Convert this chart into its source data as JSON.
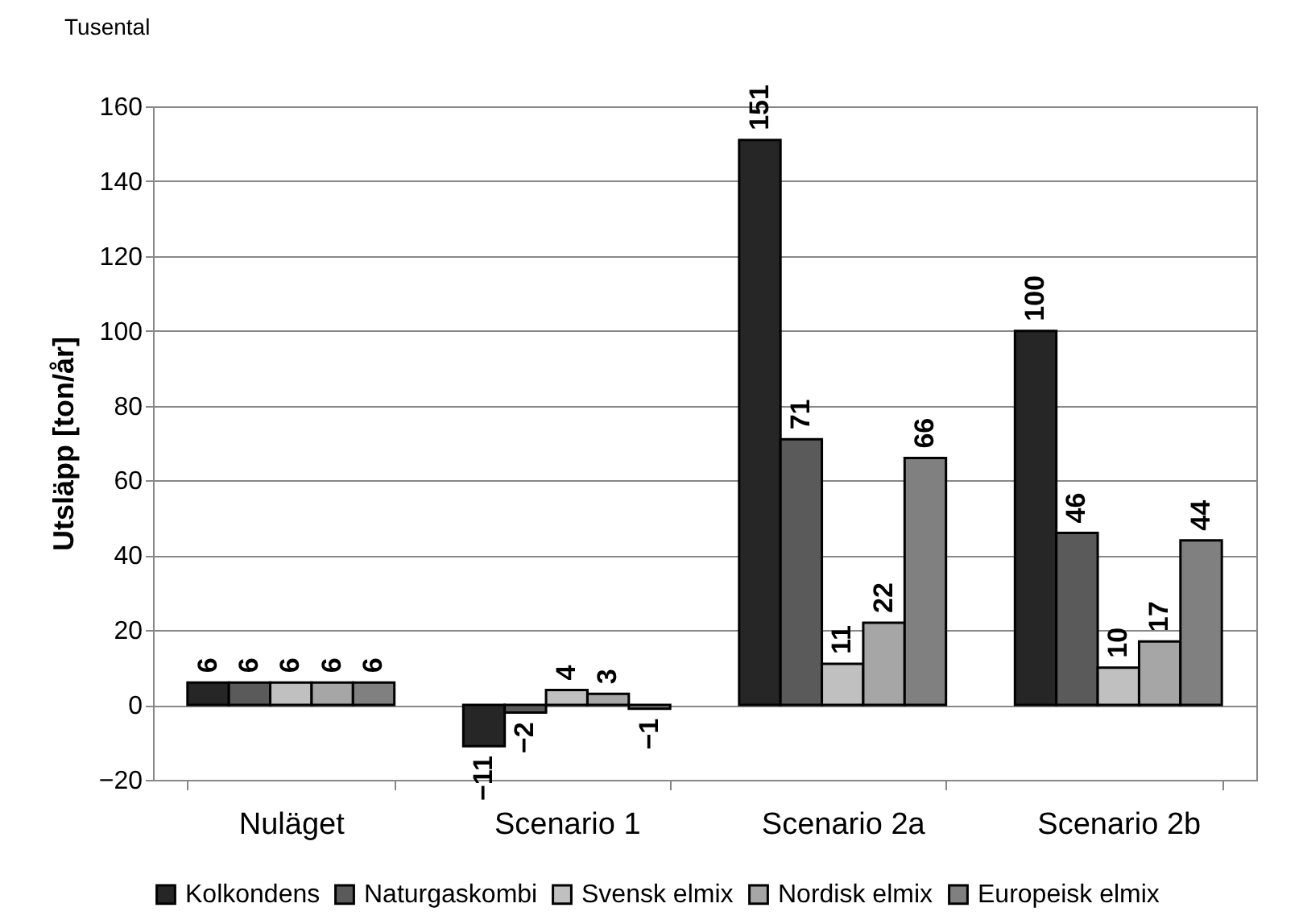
{
  "chart_data": {
    "type": "bar",
    "ylabel": "Utsläpp [ton/år]",
    "annotations": [
      "Tusental"
    ],
    "categories": [
      "Nuläget",
      "Scenario 1",
      "Scenario 2a",
      "Scenario 2b"
    ],
    "series": [
      {
        "name": "Kolkondens",
        "color": "#262626",
        "values": [
          6,
          -11,
          151,
          100
        ]
      },
      {
        "name": "Naturgaskombi",
        "color": "#5a5a5a",
        "values": [
          6,
          -2,
          71,
          46
        ]
      },
      {
        "name": "Svensk elmix",
        "color": "#c0c0c0",
        "values": [
          6,
          4,
          11,
          10
        ]
      },
      {
        "name": "Nordisk elmix",
        "color": "#a6a6a6",
        "values": [
          6,
          3,
          22,
          17
        ]
      },
      {
        "name": "Europeisk elmix",
        "color": "#808080",
        "values": [
          6,
          -1,
          66,
          44
        ]
      }
    ],
    "ylim": [
      -20,
      160
    ],
    "yticks": [
      -20,
      0,
      20,
      40,
      60,
      80,
      100,
      120,
      140,
      160
    ],
    "grid": "y",
    "legend": "bottom",
    "data_labels": true
  }
}
